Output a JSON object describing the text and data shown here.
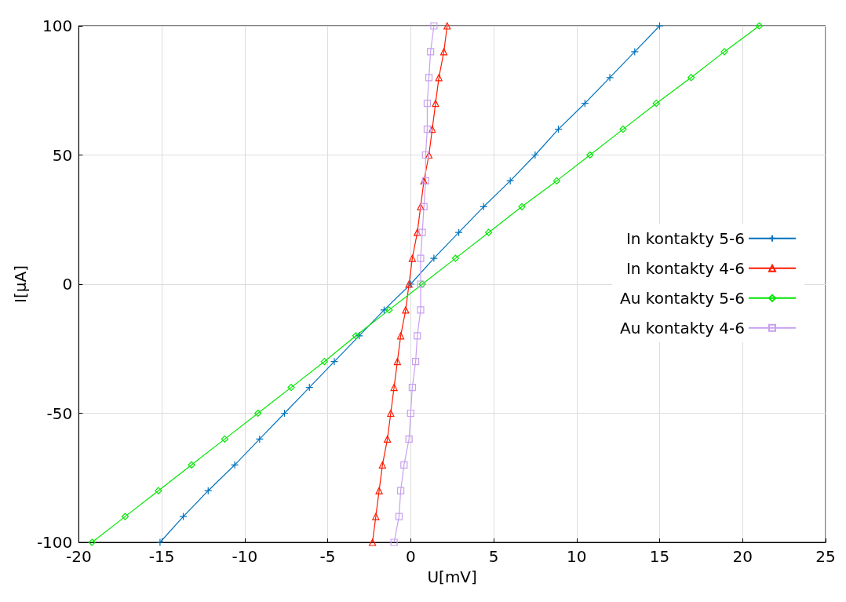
{
  "chart_data": {
    "type": "line",
    "xlabel": "U[mV]",
    "ylabel": "I[μA]",
    "xlim": [
      -20,
      25
    ],
    "ylim": [
      -100,
      100
    ],
    "xticks": [
      -20,
      -15,
      -10,
      -5,
      0,
      5,
      10,
      15,
      20,
      25
    ],
    "yticks": [
      -100,
      -50,
      0,
      50,
      100
    ],
    "grid": true,
    "legend": "right",
    "line_style": "solid",
    "series": [
      {
        "name": "In kontakty 5-6",
        "color": "#0072bd",
        "marker": "cross",
        "x": [
          -15.1,
          -13.7,
          -12.2,
          -10.6,
          -9.1,
          -7.6,
          -6.1,
          -4.6,
          -3.1,
          -1.6,
          0,
          1.4,
          2.9,
          4.4,
          6.0,
          7.5,
          8.9,
          10.5,
          12.0,
          13.5,
          15.0
        ],
        "values": [
          -100,
          -90,
          -80,
          -70,
          -60,
          -50,
          -40,
          -30,
          -20,
          -10,
          0,
          10,
          20,
          30,
          40,
          50,
          60,
          70,
          80,
          90,
          100
        ]
      },
      {
        "name": "In kontakty 4-6",
        "color": "#ff1a00",
        "marker": "triangle",
        "x": [
          -2.3,
          -2.1,
          -1.9,
          -1.7,
          -1.4,
          -1.2,
          -1.0,
          -0.8,
          -0.6,
          -0.3,
          -0.1,
          0.1,
          0.4,
          0.6,
          0.8,
          1.1,
          1.3,
          1.5,
          1.7,
          2.0,
          2.2
        ],
        "values": [
          -100,
          -90,
          -80,
          -70,
          -60,
          -50,
          -40,
          -30,
          -20,
          -10,
          0,
          10,
          20,
          30,
          40,
          50,
          60,
          70,
          80,
          90,
          100
        ]
      },
      {
        "name": "Au kontakty 5-6",
        "color": "#00e600",
        "marker": "diamond",
        "x": [
          -19.2,
          -17.2,
          -15.2,
          -13.2,
          -11.2,
          -9.2,
          -7.2,
          -5.2,
          -3.3,
          -1.3,
          0.7,
          2.7,
          4.7,
          6.7,
          8.8,
          10.8,
          12.8,
          14.8,
          16.9,
          18.9,
          21.0
        ],
        "values": [
          -100,
          -90,
          -80,
          -70,
          -60,
          -50,
          -40,
          -30,
          -20,
          -10,
          0,
          10,
          20,
          30,
          40,
          50,
          60,
          70,
          80,
          90,
          100
        ]
      },
      {
        "name": "Au kontakty 4-6",
        "color": "#c8a0f0",
        "marker": "square",
        "x": [
          -1.0,
          -0.7,
          -0.6,
          -0.4,
          -0.1,
          0.0,
          0.1,
          0.3,
          0.4,
          0.6,
          0.6,
          0.6,
          0.7,
          0.8,
          0.9,
          0.9,
          1.0,
          1.0,
          1.1,
          1.2,
          1.4
        ],
        "values": [
          -100,
          -90,
          -80,
          -70,
          -60,
          -50,
          -40,
          -30,
          -20,
          -10,
          0,
          10,
          20,
          30,
          40,
          50,
          60,
          70,
          80,
          90,
          100
        ]
      }
    ]
  }
}
